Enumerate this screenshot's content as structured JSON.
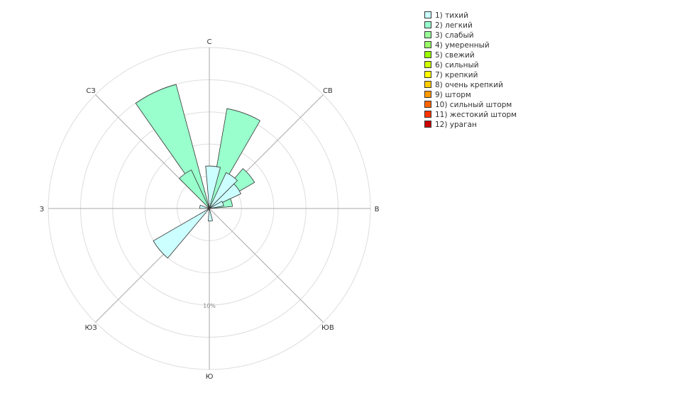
{
  "chart_data": {
    "type": "windrose",
    "directions": [
      "С",
      "СВ",
      "В",
      "ЮВ",
      "Ю",
      "ЮЗ",
      "З",
      "СЗ"
    ],
    "rings": [
      3.33,
      6.67,
      10,
      13.33,
      16.67
    ],
    "ring_label": "10%",
    "legend_position": "top-right",
    "series": [
      {
        "name": "1) тихий",
        "color": "#ccffff",
        "values": [
          {
            "angle": 5,
            "value": 4.4
          },
          {
            "angle": 35,
            "value": 4.1
          },
          {
            "angle": 55,
            "value": 3.6
          },
          {
            "angle": 70,
            "value": 1.5
          },
          {
            "angle": 175,
            "value": 1.3
          },
          {
            "angle": 230,
            "value": 6.7
          },
          {
            "angle": 280,
            "value": 1.0
          }
        ]
      },
      {
        "name": "2) легкий",
        "color": "#99ffcc",
        "values": [
          {
            "angle": 20,
            "value": 10.5
          },
          {
            "angle": 50,
            "value": 5.4
          },
          {
            "angle": 75,
            "value": 2.4
          },
          {
            "angle": 335,
            "value": 13.3
          },
          {
            "angle": 325,
            "value": 4.4
          }
        ]
      },
      {
        "name": "3) слабый",
        "color": "#99ff99",
        "values": []
      },
      {
        "name": "4) умеренный",
        "color": "#99ff66",
        "values": []
      },
      {
        "name": "5) свежий",
        "color": "#99ff00",
        "values": []
      },
      {
        "name": "6) сильный",
        "color": "#ccff00",
        "values": []
      },
      {
        "name": "7) крепкий",
        "color": "#ffff00",
        "values": []
      },
      {
        "name": "8) очень крепкий",
        "color": "#ffcc00",
        "values": []
      },
      {
        "name": "9) шторм",
        "color": "#ff9900",
        "values": []
      },
      {
        "name": "10) сильный шторм",
        "color": "#ff6600",
        "values": []
      },
      {
        "name": "11) жестокий шторм",
        "color": "#ff3300",
        "values": []
      },
      {
        "name": "12) ураган",
        "color": "#cc0000",
        "values": []
      }
    ]
  }
}
